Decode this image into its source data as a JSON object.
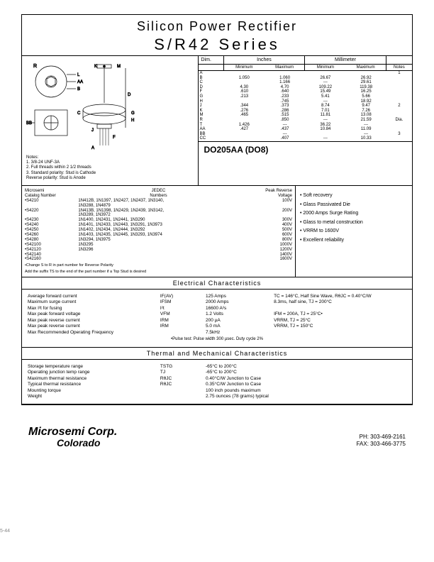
{
  "title": {
    "main": "Silicon Power Rectifier",
    "sub": "S/R42 Series"
  },
  "notes": [
    "Notes:",
    "1. 3/8-24 UNF-3A",
    "2. Full threads within 2 1/2 threads",
    "3. Standard polarity: Stud is Cathode",
    "   Reverse polarity: Stud is Anode"
  ],
  "dim_header": {
    "dim": "Dim.",
    "inches": "Inches",
    "mm": "Millimeter",
    "min": "Minimum",
    "max": "Maximum",
    "notes": "Notes"
  },
  "dim_rows": [
    {
      "l": "A",
      "mn1": "",
      "mx1": "",
      "mn2": "",
      "mx2": "",
      "n": "1"
    },
    {
      "l": "B",
      "mn1": "1.050",
      "mx1": "1.060",
      "mn2": "26.67",
      "mx2": "26.92",
      "n": ""
    },
    {
      "l": "C",
      "mn1": "",
      "mx1": "1.166",
      "mn2": "---",
      "mx2": "29.61",
      "n": ""
    },
    {
      "l": "D",
      "mn1": "4.30",
      "mx1": "4.70",
      "mn2": "109.22",
      "mx2": "119.38",
      "n": ""
    },
    {
      "l": "F",
      "mn1": ".610",
      "mx1": ".640",
      "mn2": "15.49",
      "mx2": "16.25",
      "n": ""
    },
    {
      "l": "G",
      "mn1": ".213",
      "mx1": ".233",
      "mn2": "5.41",
      "mx2": "5.66",
      "n": ""
    },
    {
      "l": "H",
      "mn1": "",
      "mx1": ".745",
      "mn2": "---",
      "mx2": "18.92",
      "n": ""
    },
    {
      "l": "J",
      "mn1": ".344",
      "mx1": ".373",
      "mn2": "8.74",
      "mx2": "9.47",
      "n": "2"
    },
    {
      "l": "K",
      "mn1": ".276",
      "mx1": ".286",
      "mn2": "7.01",
      "mx2": "7.26",
      "n": ""
    },
    {
      "l": "M",
      "mn1": ".465",
      "mx1": ".515",
      "mn2": "11.81",
      "mx2": "13.08",
      "n": ""
    },
    {
      "l": "R",
      "mn1": "",
      "mx1": ".850",
      "mn2": "---",
      "mx2": "21.59",
      "n": "Dia."
    },
    {
      "l": "T",
      "mn1": "1.426",
      "mx1": "---",
      "mn2": "36.22",
      "mx2": "---",
      "n": ""
    },
    {
      "l": "AA",
      "mn1": ".427",
      "mx1": ".437",
      "mn2": "10.84",
      "mx2": "11.09",
      "n": ""
    },
    {
      "l": "BB",
      "mn1": "",
      "mx1": "---",
      "mn2": "",
      "mx2": "---",
      "n": "3"
    },
    {
      "l": "CC",
      "mn1": "",
      "mx1": ".407",
      "mn2": "---",
      "mx2": "10.33",
      "n": ""
    }
  ],
  "package_code": "DO205AA (DO8)",
  "catalog_header": {
    "left": "Microsemi\nCatalog Number",
    "mid": "JEDEC\nNumbers",
    "right": "Peak Reverse\nVoltage"
  },
  "catalog_rows": [
    {
      "l": "•S4210",
      "m": "1N412B, 1N1397, 1N2427, 1N2437, 1N3140,",
      "r": "100V"
    },
    {
      "l": "",
      "m": "1N3288, 1N4879",
      "r": ""
    },
    {
      "l": "•S4220",
      "m": "1N413B, 1N1398, 1N2429, 1N2439, 1N3142,",
      "r": "200V"
    },
    {
      "l": "",
      "m": "1N3289, 1N3972",
      "r": ""
    },
    {
      "l": "•S4230",
      "m": "1N1400, 1N2431, 1N2441, 1N3290",
      "r": "300V"
    },
    {
      "l": "•S4240",
      "m": "1N1401, 1N2433, 1N2443, 1N3291, 1N3973",
      "r": "400V"
    },
    {
      "l": "•S4250",
      "m": "1N1402, 1N2434, 1N2444, 1N3292",
      "r": "500V"
    },
    {
      "l": "•S4260",
      "m": "1N1403, 1N2435, 1N2445, 1N3293, 1N3974",
      "r": "600V"
    },
    {
      "l": "•S4280",
      "m": "1N3294, 1N3975",
      "r": "800V"
    },
    {
      "l": "•S42100",
      "m": "1N3295",
      "r": "1000V"
    },
    {
      "l": "•S42120",
      "m": "1N3296",
      "r": "1200V"
    },
    {
      "l": "•S42140",
      "m": "",
      "r": "1400V"
    },
    {
      "l": "•S42160",
      "m": "",
      "r": "1600V"
    }
  ],
  "catalog_notes": [
    "•Change S to R in part number for Reverse Polarity",
    "Add the suffix TS to the end of the part number if a Top Stud is desired"
  ],
  "features": [
    "Soft recovery",
    "Glass Passivated Die",
    "2000 Amps Surge Rating",
    "Glass to metal construction",
    "VRRM to 1600V",
    "Excellent reliability"
  ],
  "elec_title": "Electrical Characteristics",
  "elec_rows": [
    {
      "label": "Average forward current",
      "sym": "IF(AV)",
      "val": "125 Amps",
      "extra": "TC = 146°C, Half Sine Wave, RθJC = 0.40°C/W"
    },
    {
      "label": "Maximum surge current",
      "sym": "IFSM",
      "val": "2000 Amps",
      "extra": "8.3ms, half sine, TJ = 200°C"
    },
    {
      "label": "Max I²t for fusing",
      "sym": "I²t",
      "val": "16600 A²s",
      "extra": ""
    },
    {
      "label": "Max peak forward voltage",
      "sym": "VFM",
      "val": "1.2 Volts",
      "extra": "IFM = 200A, TJ = 25°C•"
    },
    {
      "label": "Max peak reverse current",
      "sym": "IRM",
      "val": "200 µA",
      "extra": "VRRM, TJ = 25°C"
    },
    {
      "label": "Max peak reverse current",
      "sym": "IRM",
      "val": "5.0 mA",
      "extra": "VRRM, TJ = 150°C"
    },
    {
      "label": "Max Recommended Operating Frequency",
      "sym": "",
      "val": "7.5kHz",
      "extra": ""
    }
  ],
  "pulse_note": "•Pulse test: Pulse width 300 µsec. Duty cycle 2%",
  "therm_title": "Thermal and Mechanical Characteristics",
  "therm_rows": [
    {
      "label": "Storage temperature range",
      "sym": "TSTG",
      "val": "-65°C to 200°C"
    },
    {
      "label": "Operating junction temp range",
      "sym": "TJ",
      "val": "-65°C to 200°C"
    },
    {
      "label": "Maximum thermal resistance",
      "sym": "RθJC",
      "val": "0.40°C/W Junction to Case"
    },
    {
      "label": "Typical thermal resistance",
      "sym": "RθJC",
      "val": "0.35°C/W Junction to Case"
    },
    {
      "label": "Mounting torque",
      "sym": "",
      "val": "100 inch pounds maximum"
    },
    {
      "label": "Weight",
      "sym": "",
      "val": "2.75 ounces (78 grams) typical"
    }
  ],
  "footer": {
    "company_line1": "Microsemi Corp.",
    "company_line2": "Colorado",
    "ph": "PH:   303-469-2161",
    "fax": "FAX: 303-466-3775"
  },
  "page_num": "5-44"
}
